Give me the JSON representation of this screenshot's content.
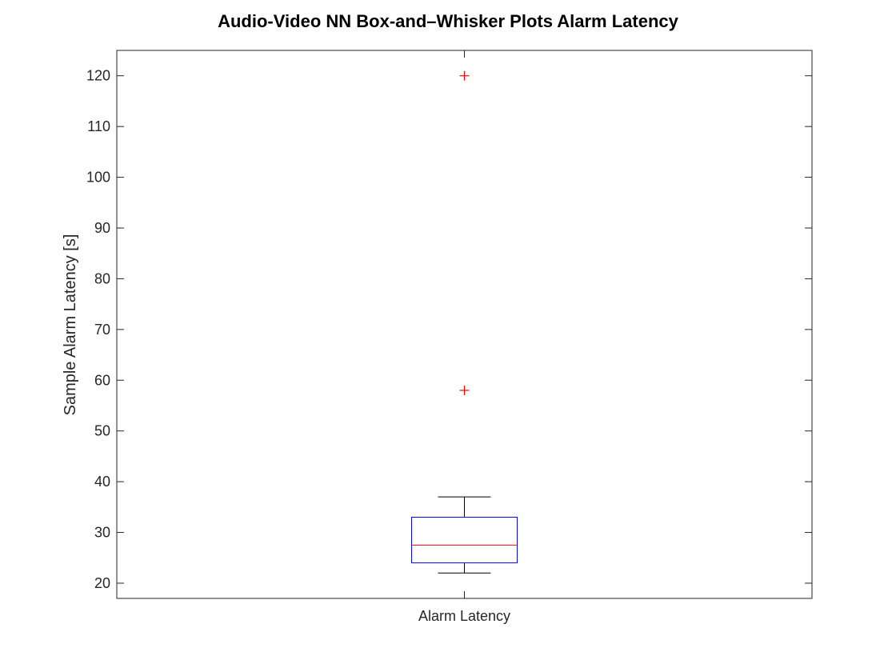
{
  "chart_data": {
    "type": "box",
    "title": "Audio-Video NN Box-and–Whisker Plots Alarm Latency",
    "xlabel": "",
    "ylabel": "Sample Alarm Latency [s]",
    "ylim": [
      17,
      125
    ],
    "yticks": [
      20,
      30,
      40,
      50,
      60,
      70,
      80,
      90,
      100,
      110,
      120
    ],
    "grid": false,
    "categories": [
      "Alarm Latency"
    ],
    "boxes": [
      {
        "label": "Alarm Latency",
        "whisker_low": 22,
        "q1": 24,
        "median": 27.5,
        "q3": 33,
        "whisker_high": 37,
        "outliers": [
          58,
          120
        ]
      }
    ],
    "colors": {
      "box": "#0000ff",
      "median": "#ff0000",
      "whisker": "#000000",
      "outlier": "#ff0000",
      "axis": "#262626"
    }
  }
}
